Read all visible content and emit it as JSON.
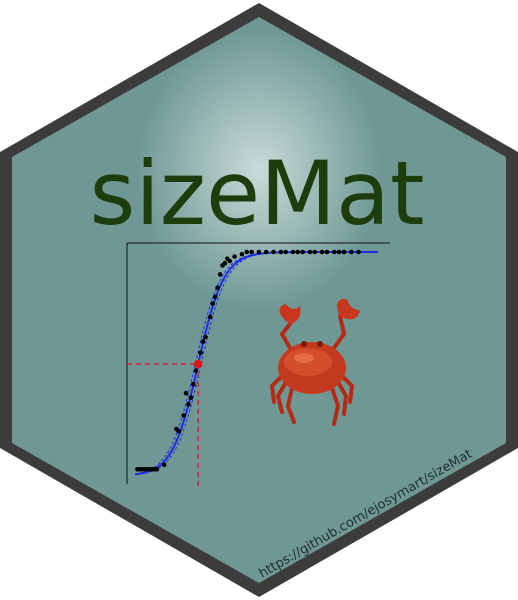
{
  "title": "sizeMat",
  "url": "https://github.com/ejosymart/sizeMat",
  "colors": {
    "border": "#3c3c3c",
    "fill": "#6f9895",
    "glow": "#c9dbd8",
    "title": "#1e3d0c",
    "curve": "#1e2de0",
    "points": "#000000",
    "marker": "#e0161c"
  },
  "icons": {
    "crab": "crab-icon"
  },
  "chart_data": {
    "type": "scatter",
    "title": "",
    "xlabel": "",
    "ylabel": "",
    "xlim": [
      0,
      100
    ],
    "ylim": [
      0,
      1
    ],
    "curve": {
      "type": "logistic",
      "x50": 26,
      "slope": 0.19
    },
    "marker": {
      "x": 26,
      "y": 0.5
    },
    "points": [
      [
        1,
        0.03
      ],
      [
        2,
        0.03
      ],
      [
        3,
        0.03
      ],
      [
        4,
        0.03
      ],
      [
        5,
        0.03
      ],
      [
        6,
        0.03
      ],
      [
        7,
        0.03
      ],
      [
        8,
        0.03
      ],
      [
        9,
        0.03
      ],
      [
        12,
        0.05
      ],
      [
        17,
        0.21
      ],
      [
        18,
        0.2
      ],
      [
        20,
        0.27
      ],
      [
        21,
        0.37
      ],
      [
        22,
        0.32
      ],
      [
        23,
        0.35
      ],
      [
        24,
        0.41
      ],
      [
        25,
        0.47
      ],
      [
        27,
        0.55
      ],
      [
        28,
        0.6
      ],
      [
        29,
        0.62
      ],
      [
        31,
        0.71
      ],
      [
        32,
        0.77
      ],
      [
        33,
        0.8
      ],
      [
        34,
        0.84
      ],
      [
        35,
        0.9
      ],
      [
        36,
        0.94
      ],
      [
        37,
        0.95
      ],
      [
        38,
        0.97
      ],
      [
        39,
        0.96
      ],
      [
        41,
        0.98
      ],
      [
        44,
        0.99
      ],
      [
        46,
        1
      ],
      [
        48,
        1
      ],
      [
        51,
        1
      ],
      [
        54,
        1
      ],
      [
        57,
        1
      ],
      [
        60,
        1
      ],
      [
        62,
        1
      ],
      [
        65,
        1
      ],
      [
        67,
        1
      ],
      [
        69,
        1
      ],
      [
        72,
        1
      ],
      [
        74,
        1
      ],
      [
        77,
        1
      ],
      [
        79,
        1
      ],
      [
        82,
        1
      ],
      [
        84,
        1
      ],
      [
        86,
        1
      ],
      [
        89,
        1
      ],
      [
        92,
        1
      ]
    ]
  }
}
